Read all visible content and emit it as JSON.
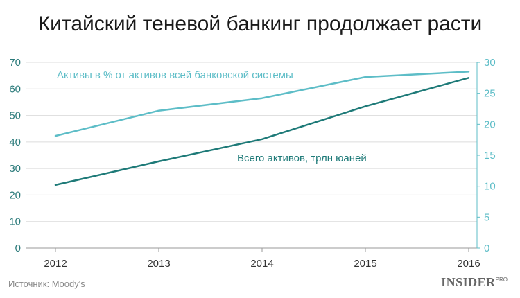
{
  "chart_data": {
    "type": "line",
    "title": "Китайский теневой банкинг продолжает расти",
    "x": [
      "2012",
      "2013",
      "2014",
      "2015",
      "2016"
    ],
    "left_axis": {
      "ticks": [
        "0",
        "10",
        "20",
        "30",
        "40",
        "50",
        "60",
        "70"
      ],
      "ylim": [
        0,
        70
      ]
    },
    "right_axis": {
      "ticks": [
        "0",
        "5",
        "10",
        "15",
        "20",
        "25",
        "30"
      ],
      "ylim": [
        0,
        30
      ]
    },
    "series": [
      {
        "name": "Активы в % от активов всей банковской системы",
        "axis": "left",
        "values": [
          42.3,
          51.8,
          56.5,
          64.5,
          66.5
        ],
        "color": "#5dbdc7"
      },
      {
        "name": "Всего активов, трлн юаней",
        "axis": "right",
        "values": [
          10.2,
          14.0,
          17.6,
          22.9,
          27.5
        ],
        "color": "#1e7a78"
      }
    ],
    "grid": true,
    "source": "Источник: Moody's"
  },
  "brand": {
    "name": "INSIDER",
    "suffix": "PRO"
  }
}
